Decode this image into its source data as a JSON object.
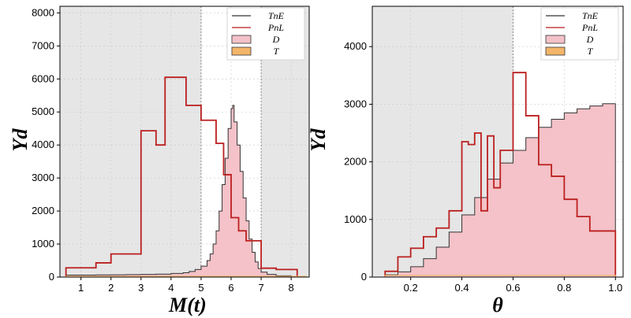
{
  "chart_data": [
    {
      "type": "step-histogram",
      "xlabel": "M(t)",
      "ylabel": "Yd",
      "xlim": [
        0.3,
        8.6
      ],
      "ylim": [
        0,
        8200
      ],
      "xticks": [
        1,
        2,
        3,
        4,
        5,
        6,
        7,
        8
      ],
      "yticks": [
        0,
        1000,
        2000,
        3000,
        4000,
        5000,
        6000,
        7000,
        8000
      ],
      "grid": true,
      "shaded_regions": [
        [
          0.3,
          5.0
        ],
        [
          7.0,
          8.6
        ]
      ],
      "vlines": [
        5.0,
        7.0
      ],
      "legend": {
        "placement": "top-right",
        "entries": [
          "TnE",
          "PnL",
          "D",
          "T"
        ]
      },
      "colors": {
        "TnE": "#333333",
        "PnL": "#bb1f1f",
        "D": "#f4c2c8",
        "T": "#f3b66a",
        "shade": "#e6e6e6"
      },
      "series": [
        {
          "name": "PnL",
          "style": "step",
          "edges": [
            0.5,
            1.5,
            2.0,
            3.0,
            3.5,
            3.8,
            4.5,
            5.0,
            5.5,
            5.75,
            6.0,
            6.25,
            6.5,
            7.0,
            7.5,
            8.2
          ],
          "values": [
            280,
            430,
            700,
            4430,
            4000,
            6050,
            5200,
            4750,
            4050,
            3100,
            1800,
            1400,
            1100,
            270,
            230
          ]
        },
        {
          "name": "TnE",
          "style": "filled-step",
          "edges": [
            0.5,
            1.0,
            1.5,
            2.0,
            2.5,
            3.0,
            3.5,
            4.0,
            4.4,
            4.6,
            4.8,
            5.0,
            5.2,
            5.3,
            5.4,
            5.5,
            5.6,
            5.7,
            5.8,
            5.9,
            6.0,
            6.05,
            6.1,
            6.2,
            6.3,
            6.4,
            6.5,
            6.6,
            6.7,
            6.8,
            6.9,
            7.0,
            7.2,
            7.5,
            8.0,
            8.5
          ],
          "values": [
            60,
            60,
            65,
            70,
            75,
            80,
            90,
            110,
            130,
            170,
            230,
            330,
            500,
            700,
            1000,
            1400,
            2000,
            2800,
            3600,
            4500,
            5100,
            5200,
            4700,
            4000,
            3200,
            2400,
            1700,
            1150,
            750,
            460,
            260,
            150,
            80,
            40,
            20
          ]
        },
        {
          "name": "T",
          "style": "step",
          "edges": [
            0.5,
            8.5
          ],
          "values": [
            20
          ]
        }
      ]
    },
    {
      "type": "step-histogram",
      "xlabel": "θ",
      "ylabel": "Yd",
      "xlim": [
        0.05,
        1.03
      ],
      "ylim": [
        0,
        4700
      ],
      "xticks": [
        0.2,
        0.4,
        0.6,
        0.8,
        1.0
      ],
      "xtick_labels": [
        "0.2",
        "0.4",
        "0.6",
        "0.8",
        "1.0"
      ],
      "yticks": [
        0,
        1000,
        2000,
        3000,
        4000
      ],
      "grid": true,
      "shaded_regions": [
        [
          0.05,
          0.6
        ]
      ],
      "vlines": [
        0.6
      ],
      "legend": {
        "placement": "top-right",
        "entries": [
          "TnE",
          "PnL",
          "D",
          "T"
        ]
      },
      "colors": {
        "TnE": "#333333",
        "PnL": "#bb1f1f",
        "D": "#f4c2c8",
        "T": "#f3b66a",
        "shade": "#e6e6e6"
      },
      "series": [
        {
          "name": "PnL",
          "style": "step",
          "edges": [
            0.1,
            0.15,
            0.2,
            0.25,
            0.3,
            0.35,
            0.4,
            0.425,
            0.45,
            0.475,
            0.5,
            0.525,
            0.55,
            0.6,
            0.65,
            0.7,
            0.75,
            0.8,
            0.85,
            0.9,
            1.0
          ],
          "values": [
            100,
            350,
            500,
            700,
            850,
            1150,
            2350,
            2300,
            2500,
            1150,
            2450,
            1550,
            2200,
            3550,
            2800,
            1950,
            1750,
            1350,
            1050,
            800
          ]
        },
        {
          "name": "TnE",
          "style": "filled-step",
          "edges": [
            0.1,
            0.15,
            0.2,
            0.25,
            0.3,
            0.35,
            0.4,
            0.45,
            0.5,
            0.55,
            0.6,
            0.65,
            0.7,
            0.75,
            0.8,
            0.85,
            0.9,
            0.95,
            1.0
          ],
          "values": [
            40,
            90,
            180,
            320,
            520,
            780,
            1080,
            1380,
            1700,
            1980,
            2200,
            2420,
            2600,
            2740,
            2850,
            2920,
            2970,
            3010
          ]
        },
        {
          "name": "T",
          "style": "step",
          "edges": [
            0.1,
            1.0
          ],
          "values": [
            30
          ]
        }
      ]
    }
  ]
}
